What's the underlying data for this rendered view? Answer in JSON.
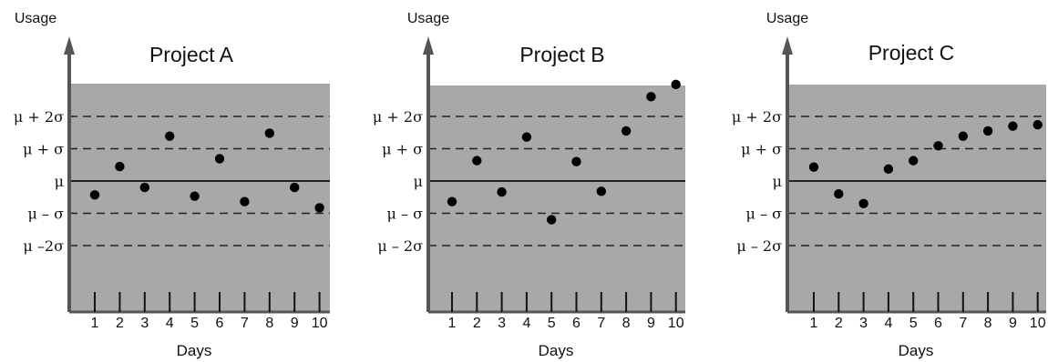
{
  "chart_data": [
    {
      "type": "scatter",
      "title": "Project A",
      "ylabel": "Usage",
      "xlabel": "Days",
      "x": [
        1,
        2,
        3,
        4,
        5,
        6,
        7,
        8,
        9,
        10
      ],
      "values": [
        -0.43,
        0.45,
        -0.2,
        1.39,
        -0.47,
        0.69,
        -0.64,
        1.48,
        -0.2,
        -0.83
      ],
      "y_ticks": [
        "μ + 2σ",
        "μ + σ",
        "μ",
        "μ – σ",
        "μ –2σ"
      ],
      "y_tick_values": [
        2,
        1,
        0,
        -1,
        -2
      ],
      "colors": {
        "plot_bg": "#a8a8a8",
        "point": "#000000"
      }
    },
    {
      "type": "scatter",
      "title": "Project B",
      "ylabel": "Usage",
      "xlabel": "Days",
      "x": [
        1,
        2,
        3,
        4,
        5,
        6,
        7,
        8,
        9,
        10
      ],
      "values": [
        -0.64,
        0.63,
        -0.34,
        1.36,
        -1.2,
        0.6,
        -0.32,
        1.55,
        2.61,
        2.99
      ],
      "y_ticks": [
        "μ + 2σ",
        "μ + σ",
        "μ",
        "μ – σ",
        "μ – 2σ"
      ],
      "y_tick_values": [
        2,
        1,
        0,
        -1,
        -2
      ],
      "colors": {
        "plot_bg": "#a8a8a8",
        "point": "#000000"
      }
    },
    {
      "type": "scatter",
      "title": "Project C",
      "ylabel": "Usage",
      "xlabel": "Days",
      "x": [
        1,
        2,
        3,
        4,
        5,
        6,
        7,
        8,
        9,
        10
      ],
      "values": [
        0.43,
        -0.4,
        -0.7,
        0.37,
        0.63,
        1.09,
        1.39,
        1.55,
        1.7,
        1.74
      ],
      "y_ticks": [
        "μ + 2σ",
        "μ + σ",
        "μ",
        "μ – σ",
        "μ – 2σ"
      ],
      "y_tick_values": [
        2,
        1,
        0,
        -1,
        -2
      ],
      "colors": {
        "plot_bg": "#a8a8a8",
        "point": "#000000"
      }
    }
  ]
}
